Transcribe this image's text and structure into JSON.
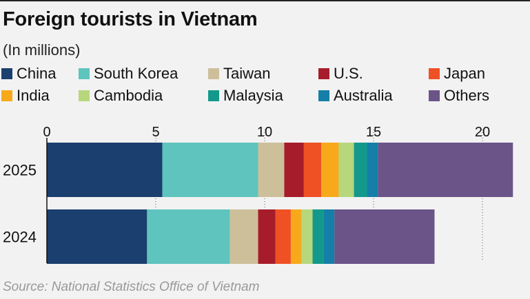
{
  "title": "Foreign tourists in Vietnam",
  "subtitle": "(In millions)",
  "source": "Source: National Statistics Office of Vietnam",
  "chart_data": {
    "type": "bar",
    "orientation": "horizontal",
    "stacked": true,
    "title": "Foreign tourists in Vietnam",
    "subtitle": "(In millions)",
    "xlim": [
      0,
      21
    ],
    "x_ticks": [
      0,
      5,
      10,
      15,
      20
    ],
    "grid": "vertical dotted",
    "legend_position": "top",
    "categories": [
      "2025",
      "2024"
    ],
    "series": [
      {
        "name": "China",
        "color": "#1b3f6e",
        "values": [
          5.3,
          4.6
        ]
      },
      {
        "name": "South Korea",
        "color": "#5ec4bd",
        "values": [
          4.4,
          3.8
        ]
      },
      {
        "name": "Taiwan",
        "color": "#cdbf9a",
        "values": [
          1.2,
          1.3
        ]
      },
      {
        "name": "U.S.",
        "color": "#a61c2a",
        "values": [
          0.9,
          0.8
        ]
      },
      {
        "name": "Japan",
        "color": "#ef5124",
        "values": [
          0.8,
          0.7
        ]
      },
      {
        "name": "India",
        "color": "#f7a91b",
        "values": [
          0.8,
          0.5
        ]
      },
      {
        "name": "Cambodia",
        "color": "#b7d77c",
        "values": [
          0.7,
          0.5
        ]
      },
      {
        "name": "Malaysia",
        "color": "#13998b",
        "values": [
          0.6,
          0.5
        ]
      },
      {
        "name": "Australia",
        "color": "#147fa8",
        "values": [
          0.5,
          0.5
        ]
      },
      {
        "name": "Others",
        "color": "#6a5488",
        "values": [
          6.2,
          4.6
        ]
      }
    ]
  }
}
